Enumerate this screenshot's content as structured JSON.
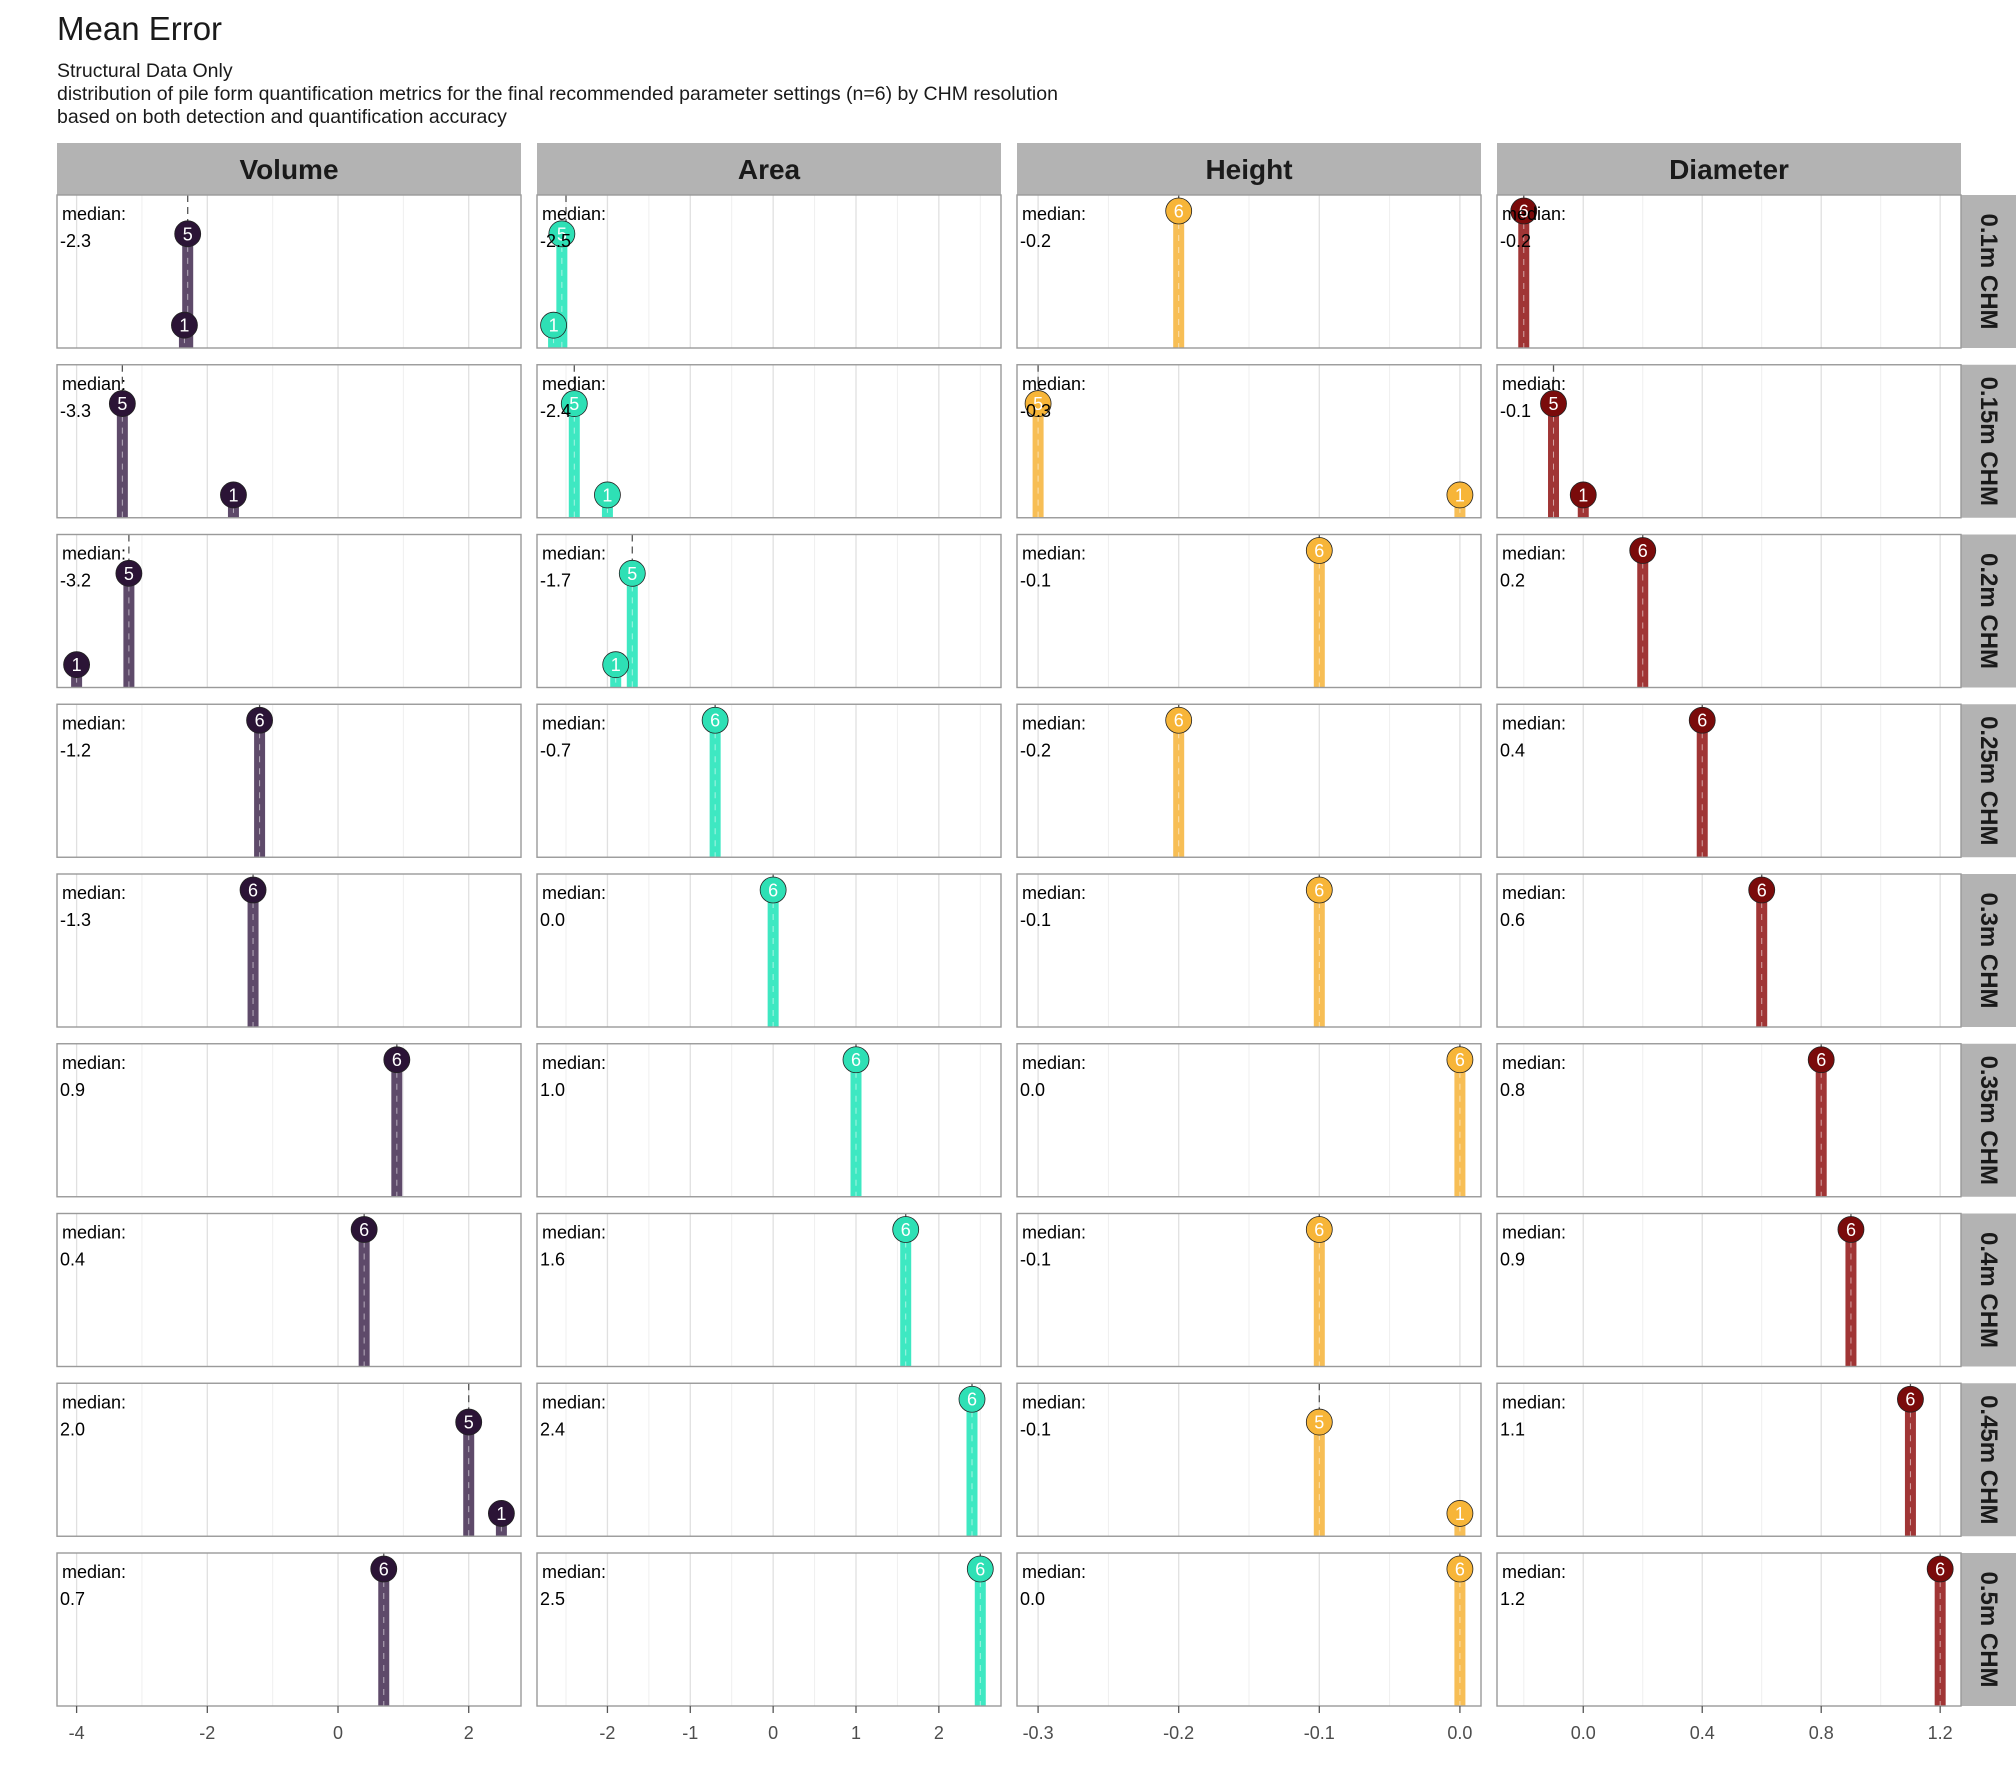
{
  "chart_data": {
    "type": "lollipop",
    "title": "Mean Error",
    "subtitle": [
      "Structural Data Only",
      "distribution of pile form quantification metrics for the final recommended parameter settings (n=6) by CHM resolution",
      "based on both detection and quantification accuracy"
    ],
    "median_label": "median:",
    "columns": [
      {
        "name": "Volume",
        "color": "#2b1436",
        "xlim": [
          -4.3,
          2.8
        ],
        "ticks": [
          -4,
          -2,
          0,
          2
        ],
        "tick_labels": [
          "-4",
          "-2",
          "0",
          "2"
        ]
      },
      {
        "name": "Area",
        "color": "#2ee0b5",
        "xlim": [
          -2.85,
          2.75
        ],
        "ticks": [
          -2,
          -1,
          0,
          1,
          2
        ],
        "tick_labels": [
          "-2",
          "-1",
          "0",
          "1",
          "2"
        ]
      },
      {
        "name": "Height",
        "color": "#f7b538",
        "xlim": [
          -0.315,
          0.015
        ],
        "ticks": [
          -0.3,
          -0.2,
          -0.1,
          0.0
        ],
        "tick_labels": [
          "-0.3",
          "-0.2",
          "-0.1",
          "0.0"
        ]
      },
      {
        "name": "Diameter",
        "color": "#7a0b0b",
        "xlim": [
          -0.29,
          1.27
        ],
        "ticks": [
          0.0,
          0.4,
          0.8,
          1.2
        ],
        "tick_labels": [
          "0.0",
          "0.4",
          "0.8",
          "1.2"
        ]
      }
    ],
    "rows": [
      "0.1m CHM",
      "0.15m CHM",
      "0.2m CHM",
      "0.25m CHM",
      "0.3m CHM",
      "0.35m CHM",
      "0.4m CHM",
      "0.45m CHM",
      "0.5m CHM"
    ],
    "panels": [
      [
        {
          "median": -2.3,
          "median_label": "-2.3",
          "points": [
            {
              "x": -2.3,
              "count": 5
            },
            {
              "x": -2.35,
              "count": 1
            }
          ]
        },
        {
          "median": -2.5,
          "median_label": "-2.5",
          "points": [
            {
              "x": -2.55,
              "count": 5
            },
            {
              "x": -2.65,
              "count": 1
            }
          ]
        },
        {
          "median": -0.2,
          "median_label": "-0.2",
          "points": [
            {
              "x": -0.2,
              "count": 6
            }
          ]
        },
        {
          "median": -0.2,
          "median_label": "-0.2",
          "points": [
            {
              "x": -0.2,
              "count": 6
            }
          ]
        }
      ],
      [
        {
          "median": -3.3,
          "median_label": "-3.3",
          "points": [
            {
              "x": -3.3,
              "count": 5
            },
            {
              "x": -1.6,
              "count": 1
            }
          ]
        },
        {
          "median": -2.4,
          "median_label": "-2.4",
          "points": [
            {
              "x": -2.4,
              "count": 5
            },
            {
              "x": -2.0,
              "count": 1
            }
          ]
        },
        {
          "median": -0.3,
          "median_label": "-0.3",
          "points": [
            {
              "x": -0.3,
              "count": 5
            },
            {
              "x": 0.0,
              "count": 1
            }
          ]
        },
        {
          "median": -0.1,
          "median_label": "-0.1",
          "points": [
            {
              "x": -0.1,
              "count": 5
            },
            {
              "x": 0.0,
              "count": 1
            }
          ]
        }
      ],
      [
        {
          "median": -3.2,
          "median_label": "-3.2",
          "points": [
            {
              "x": -3.2,
              "count": 5
            },
            {
              "x": -4.0,
              "count": 1
            }
          ]
        },
        {
          "median": -1.7,
          "median_label": "-1.7",
          "points": [
            {
              "x": -1.7,
              "count": 5
            },
            {
              "x": -1.9,
              "count": 1
            }
          ]
        },
        {
          "median": -0.1,
          "median_label": "-0.1",
          "points": [
            {
              "x": -0.1,
              "count": 6
            }
          ]
        },
        {
          "median": 0.2,
          "median_label": "0.2",
          "points": [
            {
              "x": 0.2,
              "count": 6
            }
          ]
        }
      ],
      [
        {
          "median": -1.2,
          "median_label": "-1.2",
          "points": [
            {
              "x": -1.2,
              "count": 6
            }
          ]
        },
        {
          "median": -0.7,
          "median_label": "-0.7",
          "points": [
            {
              "x": -0.7,
              "count": 6
            }
          ]
        },
        {
          "median": -0.2,
          "median_label": "-0.2",
          "points": [
            {
              "x": -0.2,
              "count": 6
            }
          ]
        },
        {
          "median": 0.4,
          "median_label": "0.4",
          "points": [
            {
              "x": 0.4,
              "count": 6
            }
          ]
        }
      ],
      [
        {
          "median": -1.3,
          "median_label": "-1.3",
          "points": [
            {
              "x": -1.3,
              "count": 6
            }
          ]
        },
        {
          "median": 0.0,
          "median_label": "0.0",
          "points": [
            {
              "x": 0.0,
              "count": 6
            }
          ]
        },
        {
          "median": -0.1,
          "median_label": "-0.1",
          "points": [
            {
              "x": -0.1,
              "count": 6
            }
          ]
        },
        {
          "median": 0.6,
          "median_label": "0.6",
          "points": [
            {
              "x": 0.6,
              "count": 6
            }
          ]
        }
      ],
      [
        {
          "median": 0.9,
          "median_label": "0.9",
          "points": [
            {
              "x": 0.9,
              "count": 6
            }
          ]
        },
        {
          "median": 1.0,
          "median_label": "1.0",
          "points": [
            {
              "x": 1.0,
              "count": 6
            }
          ]
        },
        {
          "median": 0.0,
          "median_label": "0.0",
          "points": [
            {
              "x": 0.0,
              "count": 6
            }
          ]
        },
        {
          "median": 0.8,
          "median_label": "0.8",
          "points": [
            {
              "x": 0.8,
              "count": 6
            }
          ]
        }
      ],
      [
        {
          "median": 0.4,
          "median_label": "0.4",
          "points": [
            {
              "x": 0.4,
              "count": 6
            }
          ]
        },
        {
          "median": 1.6,
          "median_label": "1.6",
          "points": [
            {
              "x": 1.6,
              "count": 6
            }
          ]
        },
        {
          "median": -0.1,
          "median_label": "-0.1",
          "points": [
            {
              "x": -0.1,
              "count": 6
            }
          ]
        },
        {
          "median": 0.9,
          "median_label": "0.9",
          "points": [
            {
              "x": 0.9,
              "count": 6
            }
          ]
        }
      ],
      [
        {
          "median": 2.0,
          "median_label": "2.0",
          "points": [
            {
              "x": 2.0,
              "count": 5
            },
            {
              "x": 2.5,
              "count": 1
            }
          ]
        },
        {
          "median": 2.4,
          "median_label": "2.4",
          "points": [
            {
              "x": 2.4,
              "count": 6
            }
          ]
        },
        {
          "median": -0.1,
          "median_label": "-0.1",
          "points": [
            {
              "x": -0.1,
              "count": 5
            },
            {
              "x": 0.0,
              "count": 1
            }
          ]
        },
        {
          "median": 1.1,
          "median_label": "1.1",
          "points": [
            {
              "x": 1.1,
              "count": 6
            }
          ]
        }
      ],
      [
        {
          "median": 0.7,
          "median_label": "0.7",
          "points": [
            {
              "x": 0.7,
              "count": 6
            }
          ]
        },
        {
          "median": 2.5,
          "median_label": "2.5",
          "points": [
            {
              "x": 2.5,
              "count": 6
            }
          ]
        },
        {
          "median": 0.0,
          "median_label": "0.0",
          "points": [
            {
              "x": 0.0,
              "count": 6
            }
          ]
        },
        {
          "median": 1.2,
          "median_label": "1.2",
          "points": [
            {
              "x": 1.2,
              "count": 6
            }
          ]
        }
      ]
    ],
    "ylim": [
      0,
      6.7
    ],
    "grid": true
  }
}
